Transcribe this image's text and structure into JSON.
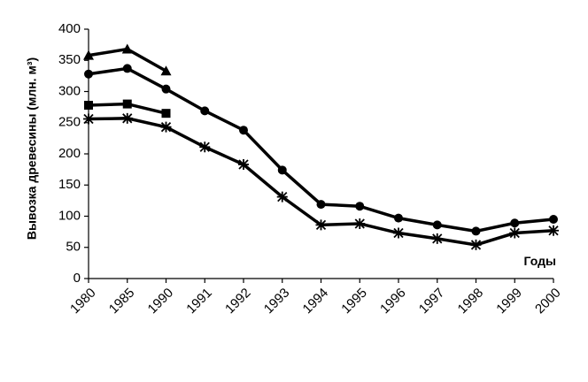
{
  "chart_data": {
    "type": "line",
    "y_label": "Вывозка древесины (млн. м³)",
    "x_label": "Годы",
    "categories": [
      "1980",
      "1985",
      "1990",
      "1991",
      "1992",
      "1993",
      "1994",
      "1995",
      "1996",
      "1997",
      "1998",
      "1999",
      "2000"
    ],
    "ylim": [
      0,
      400
    ],
    "yticks": [
      0,
      50,
      100,
      150,
      200,
      250,
      300,
      350,
      400
    ],
    "grid": false,
    "series": [
      {
        "color": "#000000",
        "marker": "triangle",
        "values": [
          358,
          368,
          333,
          null,
          null,
          null,
          null,
          null,
          null,
          null,
          null,
          null,
          null
        ]
      },
      {
        "color": "#000000",
        "marker": "circle",
        "values": [
          328,
          337,
          304,
          269,
          238,
          174,
          119,
          116,
          97,
          86,
          76,
          89,
          95
        ]
      },
      {
        "color": "#000000",
        "marker": "square",
        "values": [
          278,
          280,
          265,
          null,
          null,
          null,
          null,
          null,
          null,
          null,
          null,
          null,
          null
        ]
      },
      {
        "color": "#000000",
        "marker": "star",
        "values": [
          256,
          257,
          243,
          211,
          183,
          131,
          86,
          88,
          73,
          64,
          54,
          73,
          77
        ]
      }
    ]
  }
}
